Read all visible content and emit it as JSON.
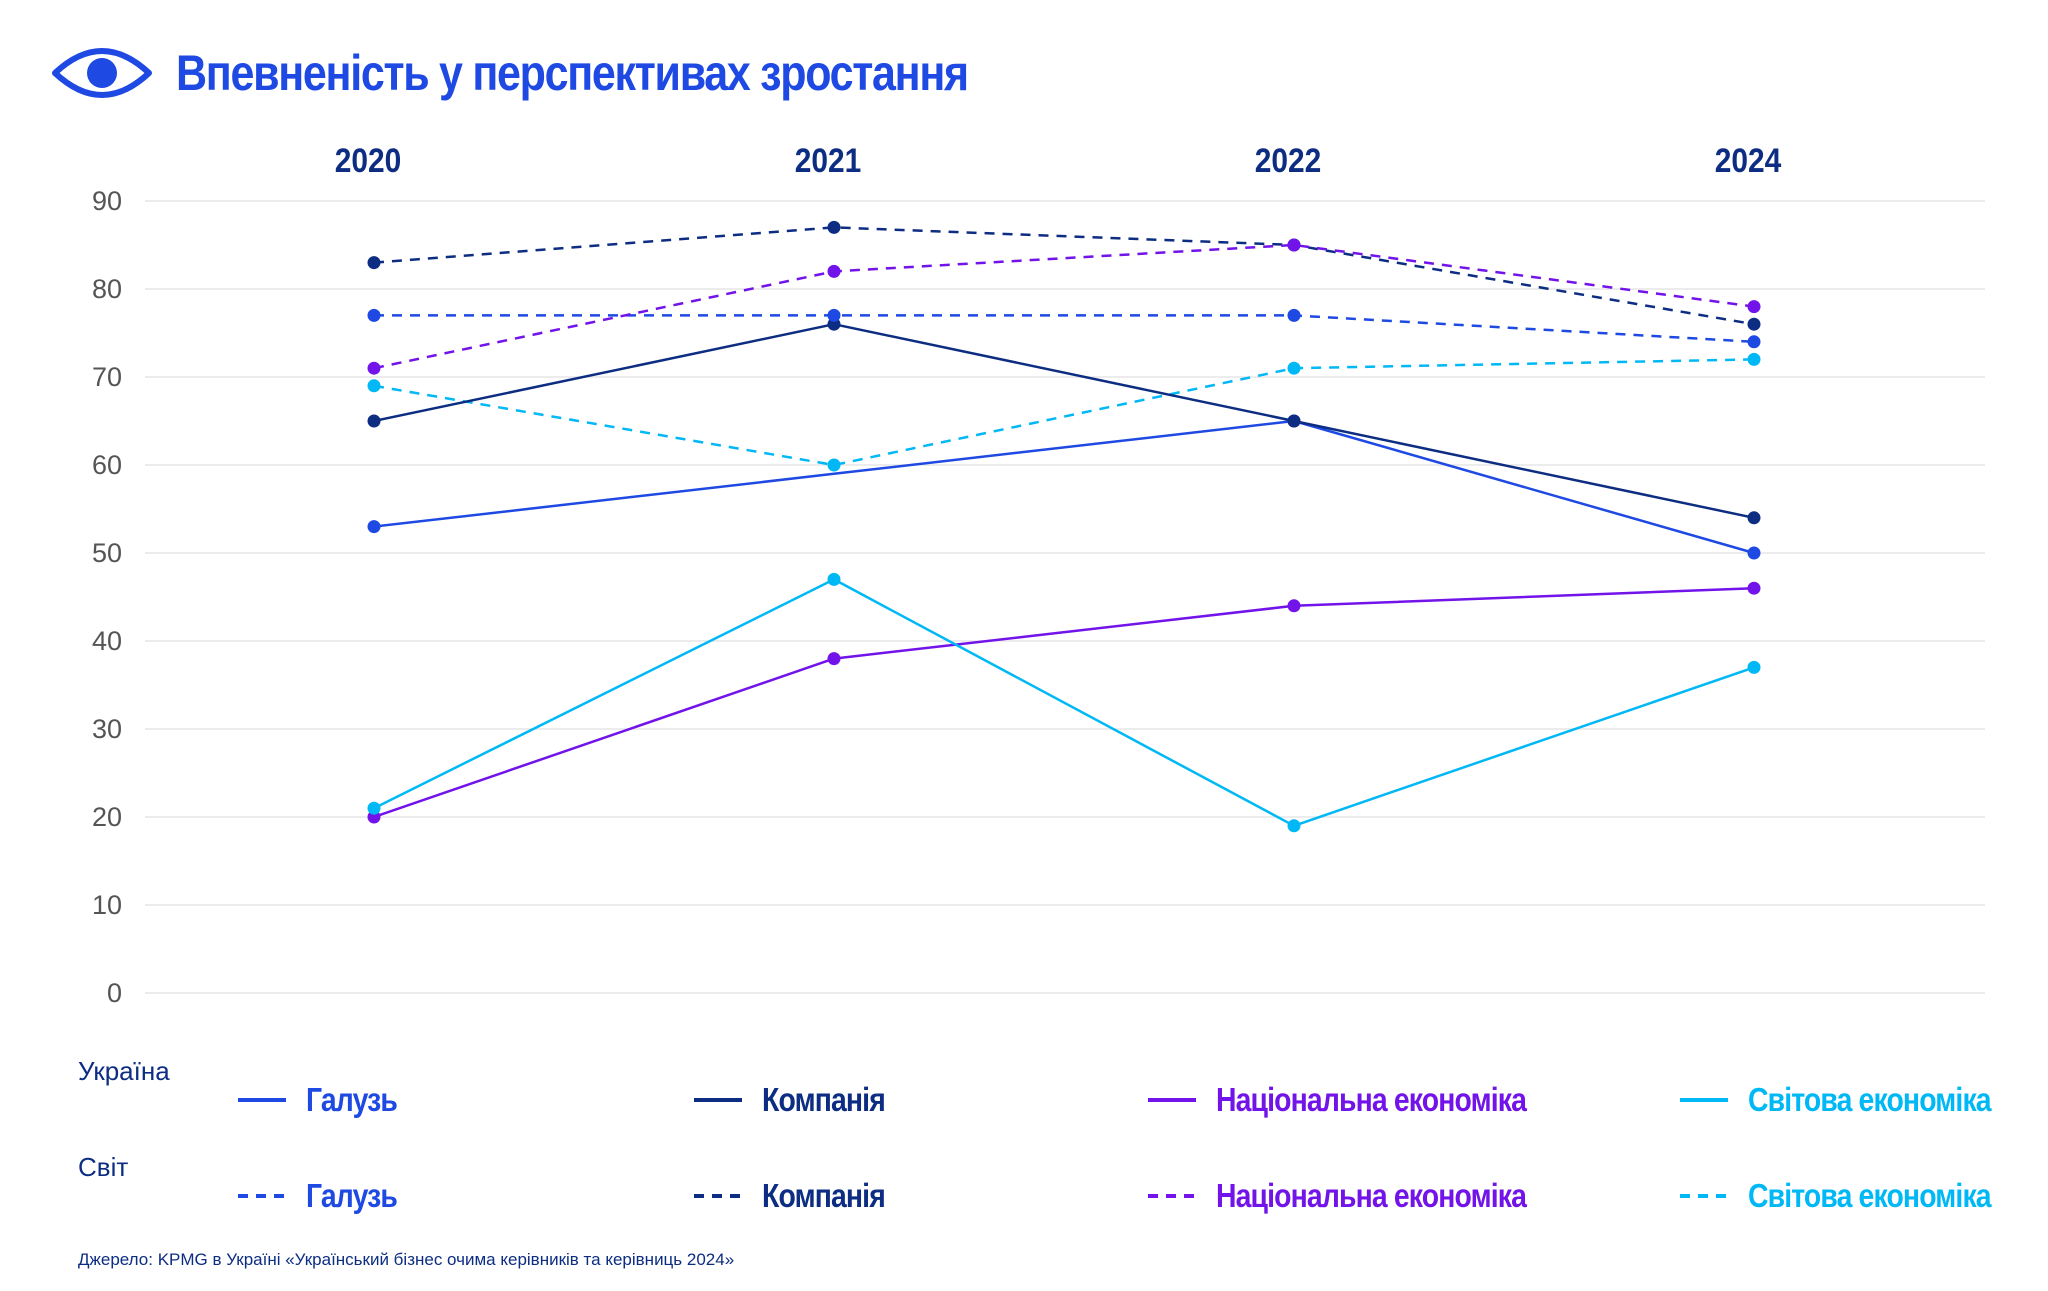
{
  "title": "Впевненість у перспективах зростання",
  "icon": "eye-icon",
  "colors": {
    "industry": "#1e49e2",
    "company": "#0c2d82",
    "national": "#7213ea",
    "world": "#00b8f5",
    "grid": "#e6e6e6"
  },
  "chart_data": {
    "type": "line",
    "title": "Впевненість у перспективах зростання",
    "categories": [
      "2020",
      "2021",
      "2022",
      "2024"
    ],
    "yticks": [
      "0",
      "10",
      "20",
      "30",
      "40",
      "50",
      "60",
      "70",
      "80",
      "90"
    ],
    "ylim": [
      0,
      90
    ],
    "grid": true,
    "series": [
      {
        "name": "Галузь",
        "group": "Україна",
        "style": "solid",
        "color": "#1e49e2",
        "values": [
          53,
          59,
          65,
          50
        ]
      },
      {
        "name": "Компанія",
        "group": "Україна",
        "style": "solid",
        "color": "#0c2d82",
        "values": [
          65,
          76,
          65,
          54
        ]
      },
      {
        "name": "Національна економіка",
        "group": "Україна",
        "style": "solid",
        "color": "#7213ea",
        "values": [
          20,
          38,
          44,
          46
        ]
      },
      {
        "name": "Світова економіка",
        "group": "Україна",
        "style": "solid",
        "color": "#00b8f5",
        "values": [
          21,
          47,
          19,
          37
        ]
      },
      {
        "name": "Галузь",
        "group": "Світ",
        "style": "dashed",
        "color": "#1e49e2",
        "values": [
          77,
          77,
          77,
          74
        ]
      },
      {
        "name": "Компанія",
        "group": "Світ",
        "style": "dashed",
        "color": "#0c2d82",
        "values": [
          83,
          87,
          85,
          76
        ]
      },
      {
        "name": "Національна економіка",
        "group": "Світ",
        "style": "dashed",
        "color": "#7213ea",
        "values": [
          71,
          82,
          85,
          78
        ]
      },
      {
        "name": "Світова економіка",
        "group": "Світ",
        "style": "dashed",
        "color": "#00b8f5",
        "values": [
          69,
          60,
          71,
          72
        ]
      }
    ],
    "hidden_markers": [
      [
        0,
        1
      ]
    ]
  },
  "legend": {
    "ukraine_label": "Україна",
    "world_label": "Світ",
    "items": [
      {
        "label": "Галузь",
        "color": "#1e49e2"
      },
      {
        "label": "Компанія",
        "color": "#0c2d82"
      },
      {
        "label": "Національна економіка",
        "color": "#7213ea"
      },
      {
        "label": "Світова економіка",
        "color": "#00b8f5"
      }
    ]
  },
  "source": "Джерело: KPMG в Україні «Український бізнес очима керівників та керівниць 2024»"
}
